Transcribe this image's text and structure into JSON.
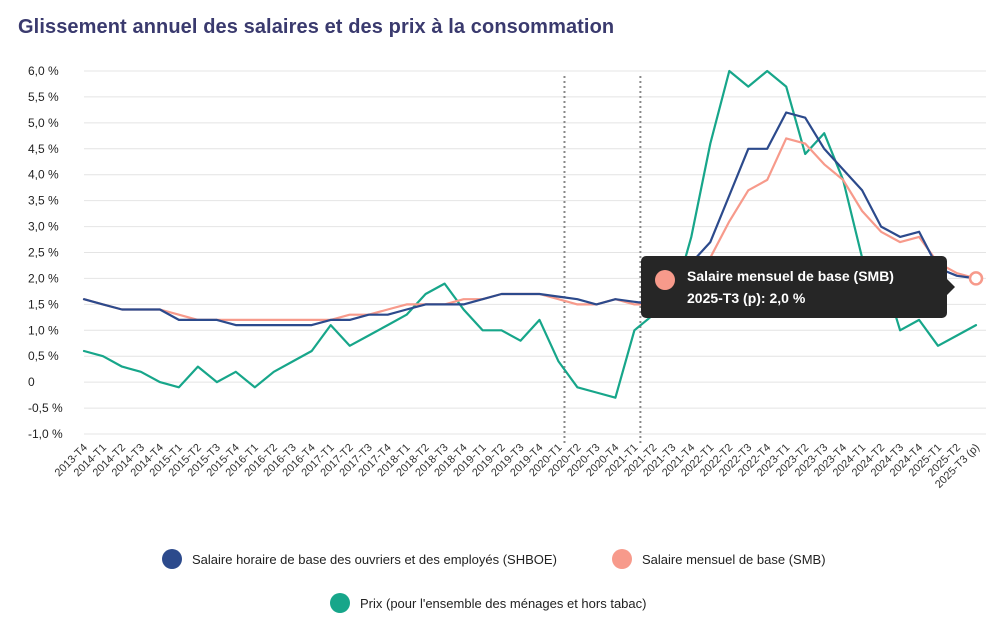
{
  "title": "Glissement annuel des salaires et des prix à la consommation",
  "colors": {
    "shboe": "#2c4a8c",
    "smb": "#f79a8b",
    "prix": "#17a68a"
  },
  "tooltip": {
    "series": "Salaire mensuel de base (SMB)",
    "value_text": "2025-T3 (p): 2,0 %"
  },
  "chart_data": {
    "type": "line",
    "categories": [
      "2013-T4",
      "2014-T1",
      "2014-T2",
      "2014-T3",
      "2014-T4",
      "2015-T1",
      "2015-T2",
      "2015-T3",
      "2015-T4",
      "2016-T1",
      "2016-T2",
      "2016-T3",
      "2016-T4",
      "2017-T1",
      "2017-T2",
      "2017-T3",
      "2017-T4",
      "2018-T1",
      "2018-T2",
      "2018-T3",
      "2018-T4",
      "2019-T1",
      "2019-T2",
      "2019-T3",
      "2019-T4",
      "2020-T1",
      "2020-T2",
      "2020-T3",
      "2020-T4",
      "2021-T1",
      "2021-T2",
      "2021-T3",
      "2021-T4",
      "2022-T1",
      "2022-T2",
      "2022-T3",
      "2022-T4",
      "2023-T1",
      "2023-T2",
      "2023-T3",
      "2023-T4",
      "2024-T1",
      "2024-T2",
      "2024-T3",
      "2024-T4",
      "2025-T1",
      "2025-T2",
      "2025-T3 (p)"
    ],
    "y_ticks": [
      "-1,0 %",
      "-0,5 %",
      "0",
      "0,5 %",
      "1,0 %",
      "1,5 %",
      "2,0 %",
      "2,5 %",
      "3,0 %",
      "3,5 %",
      "4,0 %",
      "4,5 %",
      "5,0 %",
      "5,5 %",
      "6,0 %"
    ],
    "ylim": [
      -1.0,
      6.0
    ],
    "vertical_markers": [
      "2020-T1",
      "2021-T1"
    ],
    "grid": true,
    "legend_position": "bottom",
    "series": [
      {
        "name": "Salaire horaire de base des ouvriers et des employés (SHBOE)",
        "key": "shboe",
        "values": [
          1.6,
          1.5,
          1.4,
          1.4,
          1.4,
          1.2,
          1.2,
          1.2,
          1.1,
          1.1,
          1.1,
          1.1,
          1.1,
          1.2,
          1.2,
          1.3,
          1.3,
          1.4,
          1.5,
          1.5,
          1.5,
          1.6,
          1.7,
          1.7,
          1.7,
          1.65,
          1.6,
          1.5,
          1.6,
          1.55,
          1.5,
          1.7,
          2.3,
          2.7,
          3.6,
          4.5,
          4.5,
          5.2,
          5.1,
          4.5,
          4.1,
          3.7,
          3.0,
          2.8,
          2.9,
          2.2,
          2.05,
          2.0
        ]
      },
      {
        "name": "Salaire mensuel de base (SMB)",
        "key": "smb",
        "values": [
          1.6,
          1.5,
          1.4,
          1.4,
          1.4,
          1.3,
          1.2,
          1.2,
          1.2,
          1.2,
          1.2,
          1.2,
          1.2,
          1.2,
          1.3,
          1.3,
          1.4,
          1.5,
          1.5,
          1.5,
          1.6,
          1.6,
          1.7,
          1.7,
          1.7,
          1.6,
          1.5,
          1.5,
          1.6,
          1.5,
          1.5,
          1.7,
          2.2,
          2.4,
          3.1,
          3.7,
          3.9,
          4.7,
          4.6,
          4.2,
          3.9,
          3.3,
          2.9,
          2.7,
          2.8,
          2.3,
          2.1,
          2.0
        ]
      },
      {
        "name": "Prix (pour l'ensemble des ménages et hors tabac)",
        "key": "prix",
        "values": [
          0.6,
          0.5,
          0.3,
          0.2,
          0.0,
          -0.1,
          0.3,
          0.0,
          0.2,
          -0.1,
          0.2,
          0.4,
          0.6,
          1.1,
          0.7,
          0.9,
          1.1,
          1.3,
          1.7,
          1.9,
          1.4,
          1.0,
          1.0,
          0.8,
          1.2,
          0.4,
          -0.1,
          -0.2,
          -0.3,
          1.0,
          1.3,
          1.5,
          2.8,
          4.6,
          6.0,
          5.7,
          6.0,
          5.7,
          4.4,
          4.8,
          3.9,
          2.4,
          2.2,
          1.0,
          1.2,
          0.7,
          0.9,
          1.1
        ]
      }
    ]
  }
}
